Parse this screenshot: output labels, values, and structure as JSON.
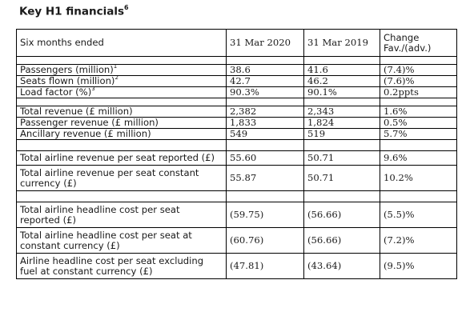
{
  "title": {
    "text": "Key H1 financials",
    "footnote": "6"
  },
  "header": {
    "label": "Six months ended",
    "col1": "31 Mar 2020",
    "col2": "31 Mar 2019",
    "col3_line1": "Change",
    "col3_line2": "Fav./(adv.)"
  },
  "rows": [
    {
      "label": "Passengers (million)",
      "fn": "1",
      "v2020": "38.6",
      "v2019": "41.6",
      "change": "(7.4)%"
    },
    {
      "label": "Seats flown (million)",
      "fn": "2",
      "v2020": "42.7",
      "v2019": "46.2",
      "change": "(7.6)%"
    },
    {
      "label": "Load factor (%)",
      "fn": "3",
      "v2020": "90.3%",
      "v2019": "90.1%",
      "change": "0.2ppts"
    },
    {
      "label": "Total revenue (£ million)",
      "v2020": "2,382",
      "v2019": "2,343",
      "change": "1.6%"
    },
    {
      "label": "Passenger revenue (£ million)",
      "v2020": "1,833",
      "v2019": "1,824",
      "change": "0.5%"
    },
    {
      "label": "Ancillary revenue (£ million)",
      "v2020": "549",
      "v2019": "519",
      "change": "5.7%"
    },
    {
      "label": "Total airline revenue per seat reported (£)",
      "v2020": "55.60",
      "v2019": "50.71",
      "change": "9.6%"
    },
    {
      "label": "Total airline revenue per seat constant currency (£)",
      "v2020": "55.87",
      "v2019": "50.71",
      "change": "10.2%"
    },
    {
      "label": "Total airline headline cost per seat reported (£)",
      "v2020": "(59.75)",
      "v2019": "(56.66)",
      "change": "(5.5)%"
    },
    {
      "label": "Total airline headline cost per seat at constant currency (£)",
      "v2020": "(60.76)",
      "v2019": "(56.66)",
      "change": "(7.2)%"
    },
    {
      "label": "Airline headline cost per seat excluding fuel at constant currency (£)",
      "v2020": "(47.81)",
      "v2019": "(43.64)",
      "change": "(9.5)%"
    }
  ]
}
